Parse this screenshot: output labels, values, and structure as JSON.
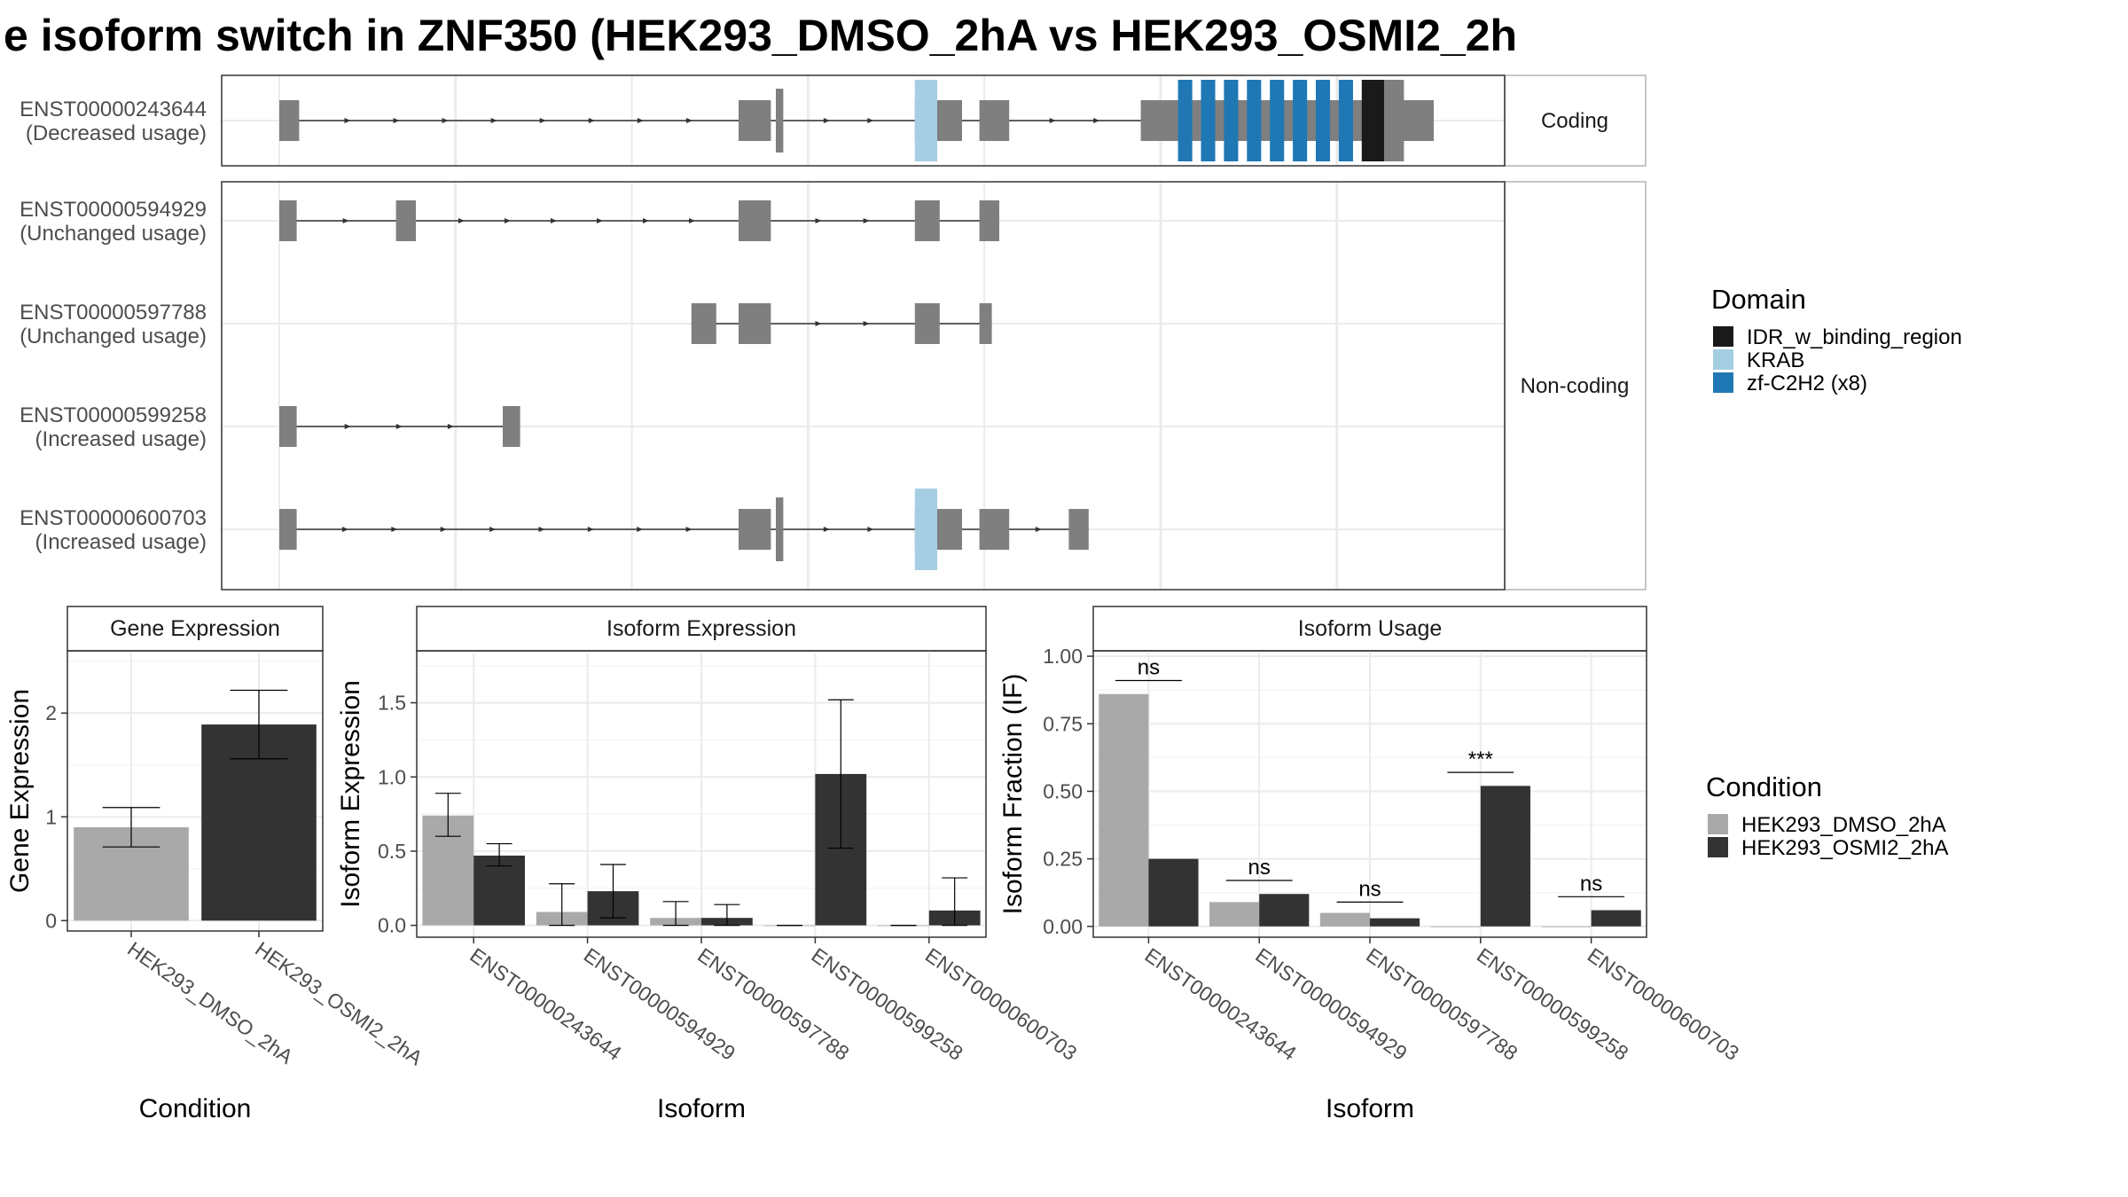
{
  "title": "e isoform switch in ZNF350 (HEK293_DMSO_2hA vs HEK293_OSMI2_2h",
  "colors": {
    "exon": "#7f7f7f",
    "intron": "#333333",
    "condition_1": "#a9a9a9",
    "condition_2": "#333333",
    "domains": {
      "IDR_w_binding_region": "#1a1a1a",
      "KRAB": "#a6cee3",
      "zf-C2H2 (x8)": "#1f78b4"
    }
  },
  "legends": {
    "domain": {
      "title": "Domain",
      "items": [
        "IDR_w_binding_region",
        "KRAB",
        "zf-C2H2 (x8)"
      ]
    },
    "condition": {
      "title": "Condition",
      "items": [
        "HEK293_DMSO_2hA",
        "HEK293_OSMI2_2hA"
      ]
    }
  },
  "chart_data": [
    {
      "type": "isoform_structure",
      "facets": [
        {
          "strip": "Coding",
          "rows": [
            "ENST00000243644"
          ]
        },
        {
          "strip": "Non-coding",
          "rows": [
            "ENST00000594929",
            "ENST00000597788",
            "ENST00000599258",
            "ENST00000600703"
          ]
        }
      ],
      "isoforms": [
        {
          "id": "ENST00000243644",
          "usage": "(Decreased usage)",
          "exons": [
            [
              0.0,
              0.8
            ],
            [
              18.5,
              19.8
            ],
            [
              20.0,
              20.3
            ],
            [
              25.6,
              27.5
            ],
            [
              28.2,
              29.4
            ],
            [
              34.7,
              46.5
            ]
          ],
          "domains": [
            {
              "name": "KRAB",
              "range": [
                25.6,
                26.5
              ]
            },
            {
              "name": "zf-C2H2 (x8)",
              "range": [
                36.2,
                43.6
              ]
            },
            {
              "name": "IDR_w_binding_region",
              "range": [
                43.6,
                44.5
              ]
            }
          ]
        },
        {
          "id": "ENST00000594929",
          "usage": "(Unchanged usage)",
          "exons": [
            [
              0.0,
              0.7
            ],
            [
              4.7,
              5.5
            ],
            [
              18.5,
              19.8
            ],
            [
              25.6,
              26.6
            ],
            [
              28.2,
              29.0
            ]
          ],
          "domains": []
        },
        {
          "id": "ENST00000597788",
          "usage": "(Unchanged usage)",
          "exons": [
            [
              16.6,
              17.6
            ],
            [
              18.5,
              19.8
            ],
            [
              25.6,
              26.6
            ],
            [
              28.2,
              28.7
            ]
          ],
          "domains": []
        },
        {
          "id": "ENST00000599258",
          "usage": "(Increased usage)",
          "exons": [
            [
              0.0,
              0.7
            ],
            [
              9.0,
              9.7
            ]
          ],
          "domains": []
        },
        {
          "id": "ENST00000600703",
          "usage": "(Increased usage)",
          "exons": [
            [
              0.0,
              0.7
            ],
            [
              18.5,
              19.8
            ],
            [
              20.0,
              20.3
            ],
            [
              25.6,
              27.5
            ],
            [
              28.2,
              29.4
            ],
            [
              31.8,
              32.6
            ]
          ],
          "domains": [
            {
              "name": "KRAB",
              "range": [
                25.6,
                26.5
              ]
            }
          ]
        }
      ]
    },
    {
      "type": "bar",
      "title": "Gene Expression",
      "xlabel": "Condition",
      "ylabel": "Gene Expression",
      "categories": [
        "HEK293_DMSO_2hA",
        "HEK293_OSMI2_2hA"
      ],
      "values": [
        0.9,
        1.89
      ],
      "error": [
        [
          0.71,
          1.09
        ],
        [
          1.56,
          2.22
        ]
      ],
      "yticks": [
        "0",
        "1",
        "2"
      ],
      "ylim": [
        -0.1,
        2.6
      ]
    },
    {
      "type": "bar",
      "title": "Isoform Expression",
      "xlabel": "Isoform",
      "ylabel": "Isoform Expression",
      "categories": [
        "ENST00000243644",
        "ENST00000594929",
        "ENST00000597788",
        "ENST00000599258",
        "ENST00000600703"
      ],
      "series": [
        {
          "name": "HEK293_DMSO_2hA",
          "values": [
            0.74,
            0.09,
            0.05,
            0.0,
            0.0
          ],
          "error": [
            [
              0.6,
              0.89
            ],
            [
              0.0,
              0.28
            ],
            [
              0.0,
              0.16
            ],
            [
              0.0,
              0.0
            ],
            [
              0.0,
              0.0
            ]
          ]
        },
        {
          "name": "HEK293_OSMI2_2hA",
          "values": [
            0.47,
            0.23,
            0.05,
            1.02,
            0.1
          ],
          "error": [
            [
              0.4,
              0.55
            ],
            [
              0.05,
              0.41
            ],
            [
              0.0,
              0.14
            ],
            [
              0.52,
              1.52
            ],
            [
              0.0,
              0.32
            ]
          ]
        }
      ],
      "yticks": [
        "0.0",
        "0.5",
        "1.0",
        "1.5"
      ],
      "ylim": [
        -0.08,
        1.85
      ]
    },
    {
      "type": "bar",
      "title": "Isoform Usage",
      "xlabel": "Isoform",
      "ylabel": "Isoform Fraction (IF)",
      "categories": [
        "ENST00000243644",
        "ENST00000594929",
        "ENST00000597788",
        "ENST00000599258",
        "ENST00000600703"
      ],
      "series": [
        {
          "name": "HEK293_DMSO_2hA",
          "values": [
            0.86,
            0.09,
            0.05,
            0.0,
            0.0
          ]
        },
        {
          "name": "HEK293_OSMI2_2hA",
          "values": [
            0.25,
            0.12,
            0.03,
            0.52,
            0.06
          ]
        }
      ],
      "annotations": [
        {
          "label": "ns",
          "y": 0.91
        },
        {
          "label": "ns",
          "y": 0.17
        },
        {
          "label": "ns",
          "y": 0.09
        },
        {
          "label": "***",
          "y": 0.57
        },
        {
          "label": "ns",
          "y": 0.11
        }
      ],
      "yticks": [
        "0.00",
        "0.25",
        "0.50",
        "0.75",
        "1.00"
      ],
      "ylim": [
        -0.04,
        1.02
      ]
    }
  ]
}
